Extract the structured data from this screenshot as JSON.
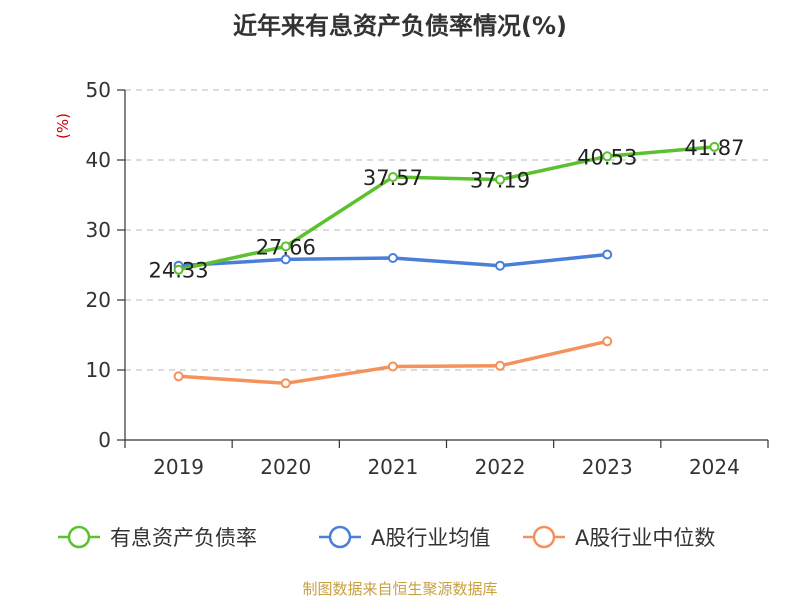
{
  "chart_data": {
    "type": "line",
    "title": "近年来有息资产负债率情况(%)",
    "ylabel": "(%)",
    "xlabel": "",
    "categories": [
      "2019",
      "2020",
      "2021",
      "2022",
      "2023",
      "2024"
    ],
    "ylim": [
      0,
      50
    ],
    "yticks": [
      0,
      10,
      20,
      30,
      40,
      50
    ],
    "grid": true,
    "legend_position": "bottom",
    "series": [
      {
        "name": "有息资产负债率",
        "color": "#5cc12f",
        "values": [
          24.33,
          27.66,
          37.57,
          37.19,
          40.53,
          41.87
        ],
        "labels": [
          "24.33",
          "27.66",
          "37.57",
          "37.19",
          "40.53",
          "41.87"
        ]
      },
      {
        "name": "A股行业均值",
        "color": "#4a7fd9",
        "values": [
          24.9,
          25.8,
          26.0,
          24.9,
          26.5,
          null
        ]
      },
      {
        "name": "A股行业中位数",
        "color": "#f5915a",
        "values": [
          9.1,
          8.1,
          10.5,
          10.6,
          14.1,
          null
        ]
      }
    ]
  },
  "source": "制图数据来自恒生聚源数据库"
}
